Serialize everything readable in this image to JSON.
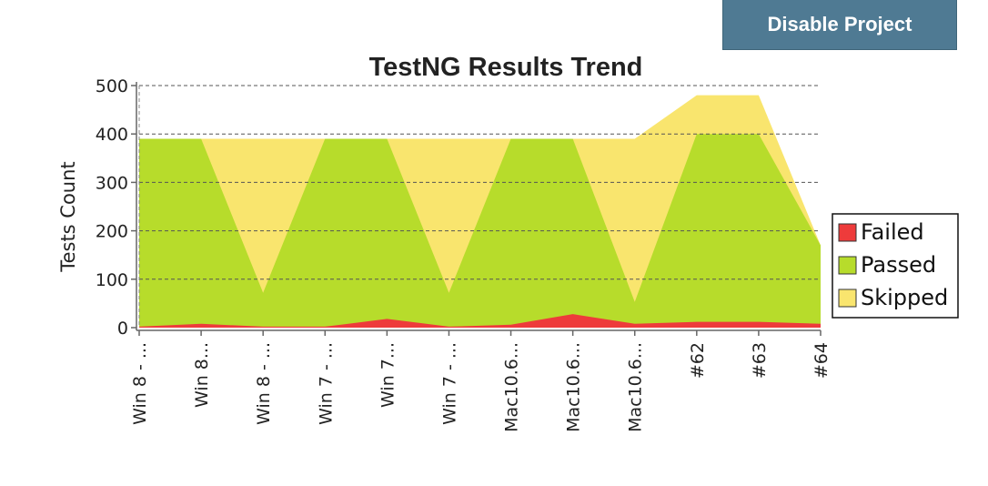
{
  "header": {
    "disable_label": "Disable Project"
  },
  "chart_data": {
    "type": "area",
    "stacked": true,
    "title": "TestNG Results Trend",
    "xlabel": "",
    "ylabel": "Tests Count",
    "ylim": [
      0,
      500
    ],
    "yticks": [
      0,
      100,
      200,
      300,
      400,
      500
    ],
    "grid": true,
    "legend_position": "right",
    "categories": [
      "Win 8 - ...",
      "Win 8...",
      "Win 8 - ...",
      "Win 7 - ...",
      "Win 7...",
      "Win 7 - ...",
      "Mac10.6...",
      "Mac10.6...",
      "Mac10.6...",
      "#62",
      "#63",
      "#64"
    ],
    "series": [
      {
        "name": "Failed",
        "color": "#ee3b3b",
        "values": [
          2,
          8,
          2,
          2,
          18,
          2,
          6,
          28,
          8,
          12,
          12,
          8
        ]
      },
      {
        "name": "Passed",
        "color": "#b7dc2b",
        "values": [
          388,
          382,
          70,
          388,
          372,
          70,
          384,
          362,
          45,
          388,
          388,
          162
        ]
      },
      {
        "name": "Skipped",
        "color": "#f9e56e",
        "values": [
          0,
          0,
          318,
          0,
          0,
          318,
          0,
          0,
          337,
          80,
          80,
          0
        ]
      }
    ]
  }
}
